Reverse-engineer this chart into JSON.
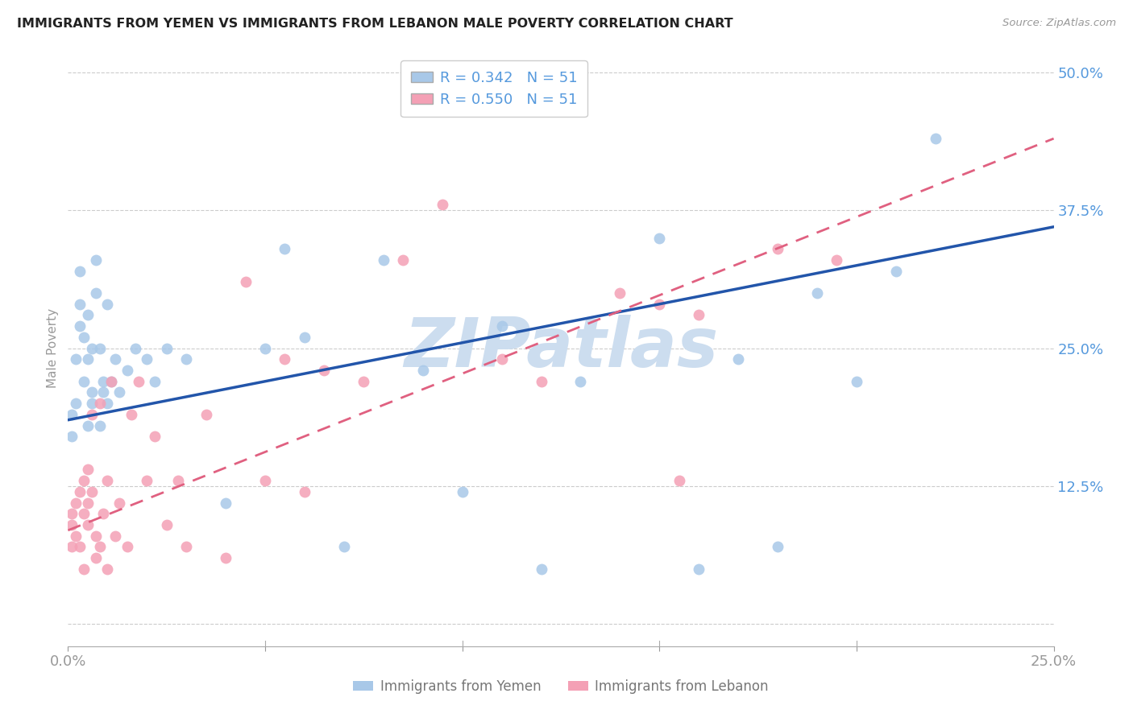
{
  "title": "IMMIGRANTS FROM YEMEN VS IMMIGRANTS FROM LEBANON MALE POVERTY CORRELATION CHART",
  "source": "Source: ZipAtlas.com",
  "ylabel": "Male Poverty",
  "xlim": [
    0.0,
    0.25
  ],
  "ylim": [
    -0.02,
    0.52
  ],
  "yticks": [
    0.0,
    0.125,
    0.25,
    0.375,
    0.5
  ],
  "ytick_labels": [
    "",
    "12.5%",
    "25.0%",
    "37.5%",
    "50.0%"
  ],
  "xticks": [
    0.0,
    0.05,
    0.1,
    0.15,
    0.2,
    0.25
  ],
  "xtick_labels": [
    "0.0%",
    "",
    "",
    "",
    "",
    "25.0%"
  ],
  "yemen_x": [
    0.001,
    0.001,
    0.002,
    0.002,
    0.003,
    0.003,
    0.003,
    0.004,
    0.004,
    0.005,
    0.005,
    0.005,
    0.006,
    0.006,
    0.006,
    0.007,
    0.007,
    0.008,
    0.008,
    0.009,
    0.009,
    0.01,
    0.01,
    0.011,
    0.012,
    0.013,
    0.015,
    0.017,
    0.02,
    0.022,
    0.025,
    0.03,
    0.04,
    0.05,
    0.055,
    0.06,
    0.07,
    0.08,
    0.09,
    0.1,
    0.11,
    0.12,
    0.13,
    0.15,
    0.16,
    0.17,
    0.18,
    0.19,
    0.2,
    0.21,
    0.22
  ],
  "yemen_y": [
    0.19,
    0.17,
    0.2,
    0.24,
    0.27,
    0.29,
    0.32,
    0.26,
    0.22,
    0.28,
    0.24,
    0.18,
    0.2,
    0.25,
    0.21,
    0.3,
    0.33,
    0.18,
    0.25,
    0.22,
    0.21,
    0.29,
    0.2,
    0.22,
    0.24,
    0.21,
    0.23,
    0.25,
    0.24,
    0.22,
    0.25,
    0.24,
    0.11,
    0.25,
    0.34,
    0.26,
    0.07,
    0.33,
    0.23,
    0.12,
    0.27,
    0.05,
    0.22,
    0.35,
    0.05,
    0.24,
    0.07,
    0.3,
    0.22,
    0.32,
    0.44
  ],
  "lebanon_x": [
    0.001,
    0.001,
    0.001,
    0.002,
    0.002,
    0.003,
    0.003,
    0.004,
    0.004,
    0.004,
    0.005,
    0.005,
    0.005,
    0.006,
    0.006,
    0.007,
    0.007,
    0.008,
    0.008,
    0.009,
    0.01,
    0.01,
    0.011,
    0.012,
    0.013,
    0.015,
    0.016,
    0.018,
    0.02,
    0.022,
    0.025,
    0.028,
    0.03,
    0.035,
    0.04,
    0.045,
    0.05,
    0.055,
    0.06,
    0.065,
    0.075,
    0.085,
    0.095,
    0.11,
    0.12,
    0.14,
    0.15,
    0.155,
    0.16,
    0.18,
    0.195
  ],
  "lebanon_y": [
    0.09,
    0.07,
    0.1,
    0.11,
    0.08,
    0.12,
    0.07,
    0.13,
    0.1,
    0.05,
    0.14,
    0.09,
    0.11,
    0.12,
    0.19,
    0.08,
    0.06,
    0.2,
    0.07,
    0.1,
    0.05,
    0.13,
    0.22,
    0.08,
    0.11,
    0.07,
    0.19,
    0.22,
    0.13,
    0.17,
    0.09,
    0.13,
    0.07,
    0.19,
    0.06,
    0.31,
    0.13,
    0.24,
    0.12,
    0.23,
    0.22,
    0.33,
    0.38,
    0.24,
    0.22,
    0.3,
    0.29,
    0.13,
    0.28,
    0.34,
    0.33
  ],
  "yemen_color": "#A8C8E8",
  "lebanon_color": "#F4A0B5",
  "yemen_line_color": "#2255AA",
  "lebanon_line_color": "#E06080",
  "yemen_line_intercept": 0.185,
  "yemen_line_slope": 0.7,
  "lebanon_line_intercept": 0.085,
  "lebanon_line_slope": 1.42,
  "R_yemen": 0.342,
  "R_lebanon": 0.55,
  "N": 51,
  "watermark": "ZIPatlas",
  "watermark_color": "#CCDDEF",
  "background_color": "#FFFFFF",
  "title_color": "#333333",
  "tick_color": "#5599DD"
}
